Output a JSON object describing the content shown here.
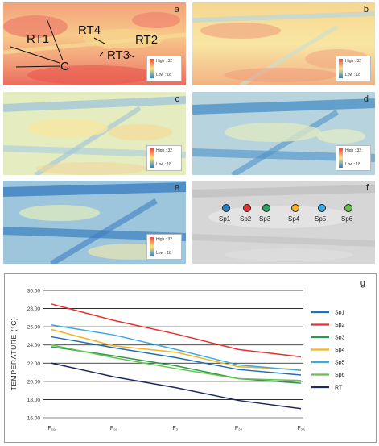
{
  "panels": {
    "a": {
      "label": "a",
      "high": "High : 32",
      "low": "Low : 18"
    },
    "b": {
      "label": "b",
      "high": "High : 32",
      "low": "Low : 18"
    },
    "c": {
      "label": "c",
      "high": "High : 32",
      "low": "Low : 18"
    },
    "d": {
      "label": "d",
      "high": "High : 32",
      "low": "Low : 18"
    },
    "e": {
      "label": "e",
      "high": "High : 32",
      "low": "Low : 18"
    },
    "f": {
      "label": "f"
    }
  },
  "annotations": {
    "rt1": "RT1",
    "rt2": "RT2",
    "rt3": "RT3",
    "rt4": "RT4",
    "c": "C"
  },
  "sample_points": [
    {
      "label": "Sp1",
      "color": "#2f7fc4"
    },
    {
      "label": "Sp2",
      "color": "#e8302e"
    },
    {
      "label": "Sp3",
      "color": "#2ca25f"
    },
    {
      "label": "Sp4",
      "color": "#f3b41c"
    },
    {
      "label": "Sp5",
      "color": "#39a9e0"
    },
    {
      "label": "Sp6",
      "color": "#66c24a"
    }
  ],
  "chart_data": {
    "type": "line",
    "panel_label": "g",
    "ylabel": "TEMPERATURE  (°C)",
    "categories": [
      "F19",
      "F20",
      "F21",
      "F22",
      "F23"
    ],
    "category_labels": [
      {
        "base": "F",
        "sub": "19"
      },
      {
        "base": "F",
        "sub": "20"
      },
      {
        "base": "F",
        "sub": "21"
      },
      {
        "base": "F",
        "sub": "22"
      },
      {
        "base": "F",
        "sub": "23"
      }
    ],
    "ylim": [
      16,
      30
    ],
    "yticks": [
      "16.00",
      "18.00",
      "20.00",
      "22.00",
      "24.00",
      "26.00",
      "28.00",
      "30.00"
    ],
    "grid": true,
    "legend_position": "right",
    "series": [
      {
        "name": "Sp1",
        "color": "#1f6fb8",
        "values": [
          24.9,
          23.7,
          22.6,
          21.3,
          20.7
        ]
      },
      {
        "name": "Sp2",
        "color": "#e8302e",
        "values": [
          28.5,
          26.7,
          25.2,
          23.5,
          22.7
        ]
      },
      {
        "name": "Sp3",
        "color": "#2a9a4a",
        "values": [
          23.8,
          22.8,
          21.7,
          20.3,
          19.8
        ]
      },
      {
        "name": "Sp4",
        "color": "#f3b41c",
        "values": [
          25.7,
          23.9,
          23.2,
          21.6,
          21.3
        ]
      },
      {
        "name": "Sp5",
        "color": "#39a9e0",
        "values": [
          26.2,
          25.1,
          23.5,
          21.8,
          21.2
        ]
      },
      {
        "name": "Sp6",
        "color": "#66c24a",
        "values": [
          24.0,
          22.6,
          21.4,
          20.3,
          20.1
        ]
      },
      {
        "name": "RT",
        "color": "#1b2a5c",
        "values": [
          22.0,
          20.5,
          19.3,
          17.9,
          17.0
        ]
      }
    ]
  }
}
